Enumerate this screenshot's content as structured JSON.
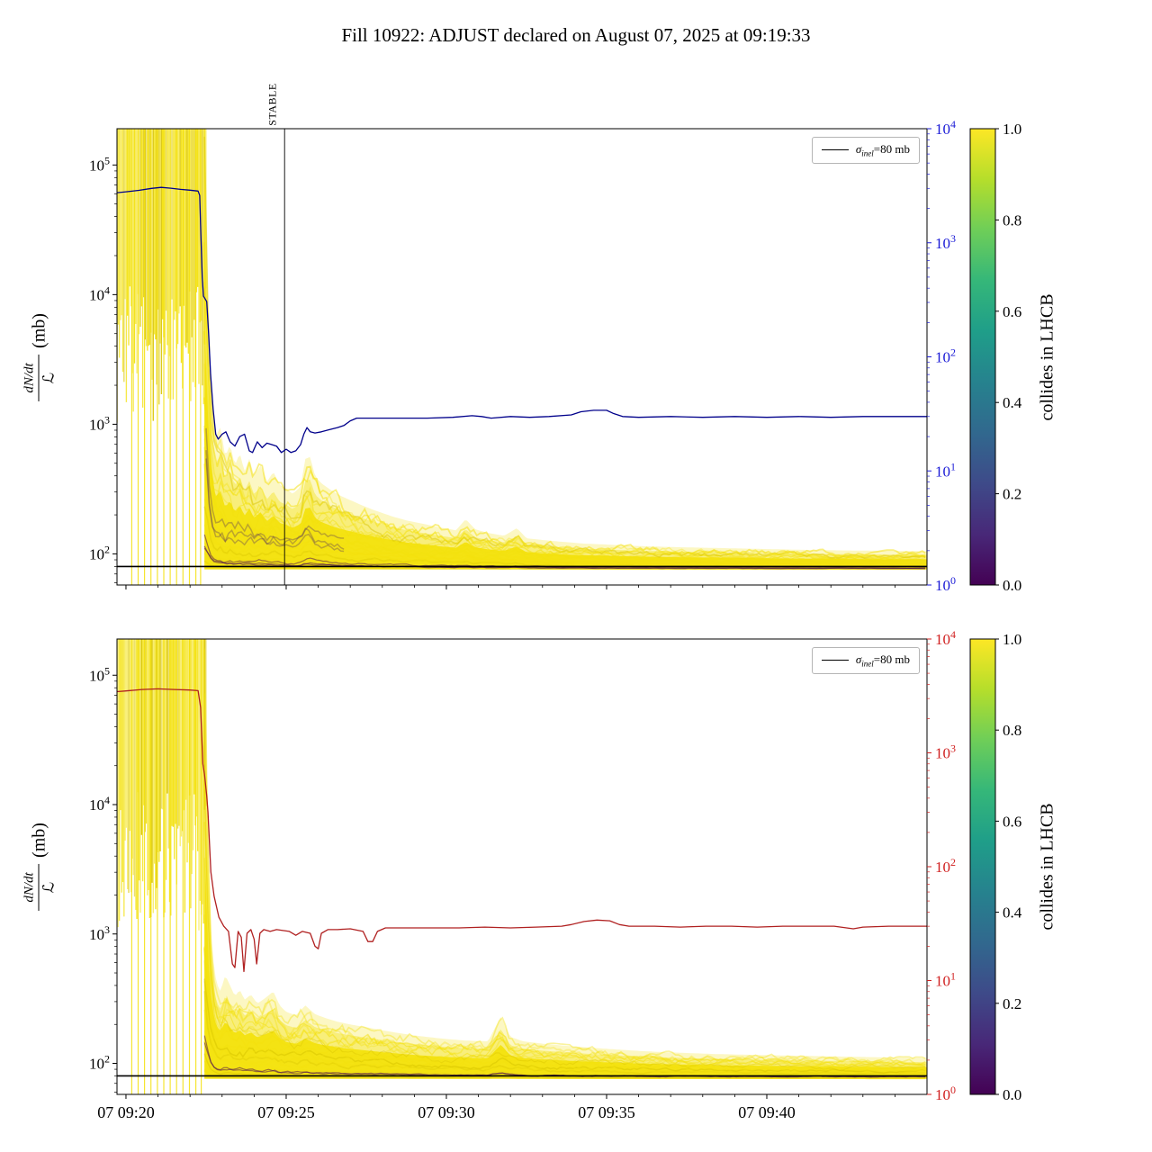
{
  "title": "Fill 10922: ADJUST declared on August 07, 2025 at 09:19:33",
  "chart_data": {
    "type": "line",
    "x_axis": {
      "tick_labels": [
        "07 09:20",
        "07 09:25",
        "07 09:30",
        "07 09:35",
        "07 09:40"
      ],
      "tick_minutes": [
        0,
        5,
        10,
        15,
        20
      ],
      "range_minutes": [
        -0.28,
        25.0
      ]
    },
    "left_axis": {
      "label_numerator": "dN/dt",
      "label_denominator": "ℒ",
      "label_unit": "(mb)",
      "tick_exponents": [
        5,
        4,
        3,
        2
      ],
      "log_range": [
        1.76,
        5.28
      ]
    },
    "right_axis": {
      "tick_exponents": [
        4,
        3,
        2,
        1,
        0
      ],
      "log_range": [
        0,
        4
      ]
    },
    "colorbar": {
      "label": "collides in LHCB",
      "tick_labels": [
        "1.0",
        "0.8",
        "0.6",
        "0.4",
        "0.2",
        "0.0"
      ],
      "viridis_stops": [
        "#440154",
        "#482878",
        "#3e4a89",
        "#31688e",
        "#26828e",
        "#1f9e89",
        "#35b779",
        "#6ece58",
        "#b5de2b",
        "#fde725"
      ]
    },
    "legend": {
      "symbol": "σ",
      "subscript": "inel",
      "suffix": "=80 mb"
    },
    "sigma_line_mb": 80,
    "stable_marker": {
      "label": "STABLE",
      "minute": 4.95
    },
    "trace_colors": {
      "yellow": "#f3e10e",
      "yellow_deep": "#d8c400",
      "purple": "#440154"
    },
    "subplots": [
      {
        "id": "top",
        "line_color": "#00008b",
        "right_axis_color": "#1a1ad6",
        "has_stable_line": true,
        "show_x_labels": false,
        "seed": 7,
        "purple_low_traces": 3,
        "purple_mid_traces": 3,
        "band_bottom_mb": 76,
        "blob": {
          "t_start": -0.28,
          "t_end": 2.5,
          "low_exp_min": 3.0,
          "low_exp_span": 1.1
        },
        "spike_minutes": [
          0.18,
          0.38,
          0.58,
          0.78,
          0.98,
          1.18,
          1.38,
          1.58,
          1.78,
          1.98,
          2.18,
          2.33
        ],
        "band_top_mb": [
          [
            2.45,
            150000
          ],
          [
            2.52,
            30000
          ],
          [
            2.6,
            4000
          ],
          [
            2.7,
            1400
          ],
          [
            2.8,
            800
          ],
          [
            2.95,
            950
          ],
          [
            3.1,
            560
          ],
          [
            3.25,
            700
          ],
          [
            3.4,
            480
          ],
          [
            3.55,
            600
          ],
          [
            3.7,
            430
          ],
          [
            3.85,
            540
          ],
          [
            4.0,
            400
          ],
          [
            4.2,
            480
          ],
          [
            4.4,
            360
          ],
          [
            4.6,
            430
          ],
          [
            4.8,
            340
          ],
          [
            5.0,
            320
          ],
          [
            5.2,
            290
          ],
          [
            5.45,
            330
          ],
          [
            5.6,
            540
          ],
          [
            5.75,
            560
          ],
          [
            5.9,
            400
          ],
          [
            6.1,
            350
          ],
          [
            6.4,
            310
          ],
          [
            6.7,
            280
          ],
          [
            7.0,
            260
          ],
          [
            7.4,
            235
          ],
          [
            7.8,
            215
          ],
          [
            8.3,
            195
          ],
          [
            8.8,
            180
          ],
          [
            9.3,
            170
          ],
          [
            9.8,
            160
          ],
          [
            10.3,
            152
          ],
          [
            10.6,
            185
          ],
          [
            10.9,
            155
          ],
          [
            11.3,
            145
          ],
          [
            11.8,
            138
          ],
          [
            12.2,
            158
          ],
          [
            12.5,
            132
          ],
          [
            13.0,
            128
          ],
          [
            13.6,
            124
          ],
          [
            14.3,
            120
          ],
          [
            15.0,
            118
          ],
          [
            16.0,
            115
          ],
          [
            17.0,
            113
          ],
          [
            18.5,
            111
          ],
          [
            20.0,
            109
          ],
          [
            21.5,
            107
          ],
          [
            23.0,
            106
          ],
          [
            25.0,
            105
          ]
        ],
        "main_line": [
          [
            -0.28,
            2750
          ],
          [
            0,
            2800
          ],
          [
            0.4,
            2880
          ],
          [
            0.8,
            3000
          ],
          [
            1.1,
            3060
          ],
          [
            1.4,
            3010
          ],
          [
            1.7,
            2940
          ],
          [
            2.0,
            2890
          ],
          [
            2.25,
            2840
          ],
          [
            2.3,
            2600
          ],
          [
            2.34,
            1100
          ],
          [
            2.38,
            500
          ],
          [
            2.42,
            340
          ],
          [
            2.52,
            305
          ],
          [
            2.58,
            160
          ],
          [
            2.64,
            70
          ],
          [
            2.72,
            35
          ],
          [
            2.8,
            21
          ],
          [
            2.88,
            19
          ],
          [
            3.0,
            21
          ],
          [
            3.12,
            22
          ],
          [
            3.25,
            18
          ],
          [
            3.4,
            16.5
          ],
          [
            3.55,
            20
          ],
          [
            3.7,
            21
          ],
          [
            3.85,
            15
          ],
          [
            3.95,
            14.5
          ],
          [
            4.1,
            18
          ],
          [
            4.25,
            16
          ],
          [
            4.4,
            17.5
          ],
          [
            4.55,
            17
          ],
          [
            4.7,
            16.5
          ],
          [
            4.85,
            14.5
          ],
          [
            5.0,
            15.5
          ],
          [
            5.15,
            14.5
          ],
          [
            5.3,
            15
          ],
          [
            5.45,
            17
          ],
          [
            5.55,
            21
          ],
          [
            5.65,
            24
          ],
          [
            5.75,
            22
          ],
          [
            5.9,
            21.5
          ],
          [
            6.1,
            22
          ],
          [
            6.35,
            23
          ],
          [
            6.6,
            24
          ],
          [
            6.8,
            25
          ],
          [
            7.0,
            27.5
          ],
          [
            7.2,
            29
          ],
          [
            7.8,
            29
          ],
          [
            8.6,
            29
          ],
          [
            9.4,
            29
          ],
          [
            10.2,
            29.5
          ],
          [
            10.8,
            30.5
          ],
          [
            11.1,
            30
          ],
          [
            11.4,
            29
          ],
          [
            12.0,
            30
          ],
          [
            12.6,
            29.5
          ],
          [
            13.2,
            30
          ],
          [
            13.9,
            31
          ],
          [
            14.2,
            33
          ],
          [
            14.6,
            34
          ],
          [
            15.0,
            34
          ],
          [
            15.2,
            32
          ],
          [
            15.5,
            30
          ],
          [
            16.0,
            29.5
          ],
          [
            17.0,
            30
          ],
          [
            18.0,
            29.5
          ],
          [
            19.0,
            30
          ],
          [
            20.0,
            29.5
          ],
          [
            21.0,
            30
          ],
          [
            22.0,
            29.5
          ],
          [
            23.0,
            30
          ],
          [
            24.0,
            30
          ],
          [
            25.0,
            30
          ]
        ]
      },
      {
        "id": "bottom",
        "line_color": "#b02020",
        "right_axis_color": "#d02020",
        "has_stable_line": false,
        "show_x_labels": true,
        "seed": 13,
        "purple_low_traces": 2,
        "purple_mid_traces": 0,
        "band_bottom_mb": 76,
        "blob": {
          "t_start": -0.28,
          "t_end": 2.5,
          "low_exp_min": 3.0,
          "low_exp_span": 1.1
        },
        "spike_minutes": [
          0.18,
          0.38,
          0.58,
          0.78,
          0.98,
          1.18,
          1.38,
          1.58,
          1.78,
          1.98,
          2.18,
          2.35
        ],
        "band_top_mb": [
          [
            2.45,
            120000
          ],
          [
            2.52,
            15000
          ],
          [
            2.6,
            2000
          ],
          [
            2.7,
            700
          ],
          [
            2.82,
            420
          ],
          [
            2.95,
            360
          ],
          [
            3.1,
            480
          ],
          [
            3.25,
            400
          ],
          [
            3.4,
            330
          ],
          [
            3.55,
            370
          ],
          [
            3.7,
            310
          ],
          [
            3.9,
            340
          ],
          [
            4.1,
            290
          ],
          [
            4.35,
            320
          ],
          [
            4.6,
            360
          ],
          [
            4.8,
            280
          ],
          [
            5.0,
            250
          ],
          [
            5.3,
            235
          ],
          [
            5.6,
            280
          ],
          [
            5.9,
            240
          ],
          [
            6.2,
            225
          ],
          [
            6.6,
            210
          ],
          [
            7.0,
            200
          ],
          [
            7.5,
            190
          ],
          [
            8.0,
            180
          ],
          [
            8.6,
            170
          ],
          [
            9.2,
            162
          ],
          [
            9.9,
            155
          ],
          [
            10.6,
            150
          ],
          [
            11.3,
            148
          ],
          [
            11.7,
            230
          ],
          [
            12.0,
            160
          ],
          [
            12.4,
            148
          ],
          [
            13.0,
            142
          ],
          [
            13.7,
            137
          ],
          [
            14.5,
            132
          ],
          [
            15.3,
            128
          ],
          [
            16.2,
            124
          ],
          [
            17.2,
            121
          ],
          [
            18.4,
            118
          ],
          [
            19.8,
            116
          ],
          [
            21.4,
            114
          ],
          [
            23.0,
            112
          ],
          [
            25.0,
            110
          ]
        ],
        "main_line": [
          [
            -0.28,
            3450
          ],
          [
            0,
            3500
          ],
          [
            0.5,
            3600
          ],
          [
            1.0,
            3650
          ],
          [
            1.5,
            3600
          ],
          [
            2.0,
            3560
          ],
          [
            2.25,
            3520
          ],
          [
            2.33,
            2500
          ],
          [
            2.4,
            800
          ],
          [
            2.45,
            650
          ],
          [
            2.52,
            420
          ],
          [
            2.56,
            300
          ],
          [
            2.65,
            90
          ],
          [
            2.75,
            55
          ],
          [
            2.9,
            36
          ],
          [
            3.05,
            30
          ],
          [
            3.2,
            27
          ],
          [
            3.32,
            14
          ],
          [
            3.4,
            13
          ],
          [
            3.5,
            27
          ],
          [
            3.6,
            24
          ],
          [
            3.68,
            12
          ],
          [
            3.78,
            26
          ],
          [
            3.9,
            28
          ],
          [
            4.0,
            23
          ],
          [
            4.08,
            14
          ],
          [
            4.18,
            26
          ],
          [
            4.3,
            28
          ],
          [
            4.5,
            27
          ],
          [
            4.7,
            28
          ],
          [
            4.9,
            27.5
          ],
          [
            5.1,
            27
          ],
          [
            5.3,
            25
          ],
          [
            5.5,
            27
          ],
          [
            5.75,
            26
          ],
          [
            5.9,
            20
          ],
          [
            6.0,
            19
          ],
          [
            6.1,
            26
          ],
          [
            6.3,
            28
          ],
          [
            6.6,
            28
          ],
          [
            7.0,
            28.5
          ],
          [
            7.4,
            27
          ],
          [
            7.55,
            22
          ],
          [
            7.7,
            22
          ],
          [
            7.85,
            27
          ],
          [
            8.1,
            29
          ],
          [
            8.8,
            29
          ],
          [
            9.6,
            29
          ],
          [
            10.4,
            29
          ],
          [
            11.2,
            29.5
          ],
          [
            12.0,
            29
          ],
          [
            12.8,
            29.5
          ],
          [
            13.6,
            30
          ],
          [
            13.9,
            31
          ],
          [
            14.3,
            33
          ],
          [
            14.7,
            34
          ],
          [
            15.1,
            33.5
          ],
          [
            15.4,
            31
          ],
          [
            15.7,
            30
          ],
          [
            16.5,
            30
          ],
          [
            17.3,
            29.5
          ],
          [
            18.1,
            30
          ],
          [
            18.9,
            30
          ],
          [
            19.7,
            29.5
          ],
          [
            20.5,
            30
          ],
          [
            21.3,
            30
          ],
          [
            22.1,
            30
          ],
          [
            22.7,
            28.5
          ],
          [
            23.0,
            29.5
          ],
          [
            23.8,
            30
          ],
          [
            24.6,
            30
          ],
          [
            25.0,
            30
          ]
        ]
      }
    ]
  }
}
